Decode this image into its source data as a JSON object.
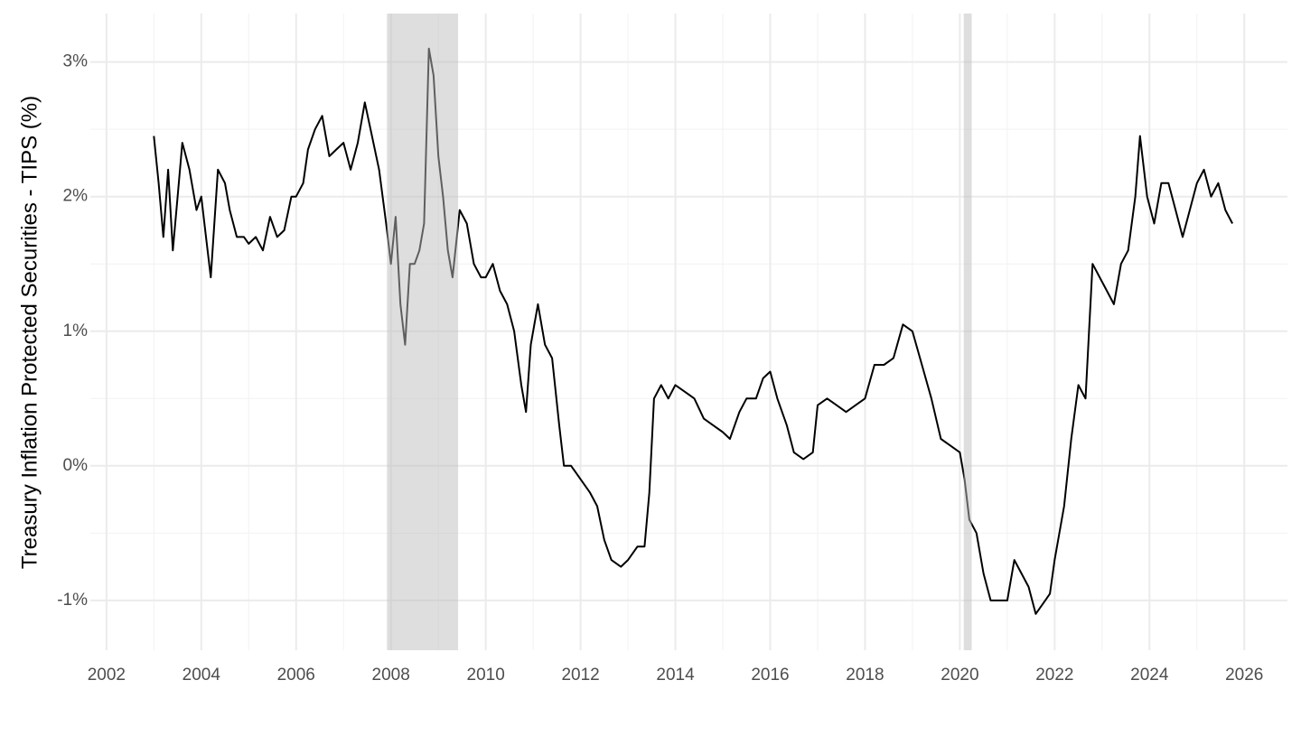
{
  "chart_data": {
    "type": "line",
    "y_label": "Treasury Inflation Protected Securities - TIPS (%)",
    "color": "#000000",
    "shade_color": "#bdbdbd",
    "shaded_ranges": [
      [
        2007.917,
        2009.417
      ],
      [
        2020.083,
        2020.25
      ]
    ],
    "xlim": [
      2001.66,
      2026.91
    ],
    "ylim": [
      -1.37,
      3.36
    ],
    "xticks": [
      2002,
      2004,
      2006,
      2008,
      2010,
      2012,
      2014,
      2016,
      2018,
      2020,
      2022,
      2024,
      2026
    ],
    "yticks": [
      {
        "value": -1,
        "label": "-1%"
      },
      {
        "value": 0,
        "label": "0%"
      },
      {
        "value": 1,
        "label": "1%"
      },
      {
        "value": 2,
        "label": "2%"
      },
      {
        "value": 3,
        "label": "3%"
      }
    ],
    "grid": true,
    "x": [
      2003.0,
      2003.1,
      2003.2,
      2003.3,
      2003.4,
      2003.5,
      2003.6,
      2003.75,
      2003.9,
      2004.0,
      2004.1,
      2004.2,
      2004.35,
      2004.5,
      2004.6,
      2004.75,
      2004.9,
      2005.0,
      2005.15,
      2005.3,
      2005.45,
      2005.6,
      2005.75,
      2005.9,
      2006.0,
      2006.15,
      2006.25,
      2006.4,
      2006.55,
      2006.7,
      2006.85,
      2007.0,
      2007.15,
      2007.3,
      2007.45,
      2007.6,
      2007.75,
      2007.9,
      2008.0,
      2008.1,
      2008.2,
      2008.3,
      2008.4,
      2008.5,
      2008.6,
      2008.7,
      2008.8,
      2008.9,
      2009.0,
      2009.1,
      2009.2,
      2009.3,
      2009.45,
      2009.6,
      2009.75,
      2009.9,
      2010.0,
      2010.15,
      2010.3,
      2010.45,
      2010.6,
      2010.75,
      2010.85,
      2010.95,
      2011.1,
      2011.25,
      2011.4,
      2011.55,
      2011.65,
      2011.8,
      2012.0,
      2012.2,
      2012.35,
      2012.5,
      2012.65,
      2012.85,
      2013.0,
      2013.2,
      2013.35,
      2013.45,
      2013.55,
      2013.7,
      2013.85,
      2014.0,
      2014.2,
      2014.4,
      2014.6,
      2014.8,
      2015.0,
      2015.15,
      2015.35,
      2015.5,
      2015.7,
      2015.85,
      2016.0,
      2016.15,
      2016.35,
      2016.5,
      2016.7,
      2016.9,
      2017.0,
      2017.2,
      2017.4,
      2017.6,
      2017.8,
      2018.0,
      2018.2,
      2018.4,
      2018.6,
      2018.8,
      2019.0,
      2019.2,
      2019.4,
      2019.6,
      2019.8,
      2020.0,
      2020.1,
      2020.2,
      2020.35,
      2020.5,
      2020.65,
      2020.8,
      2021.0,
      2021.15,
      2021.3,
      2021.45,
      2021.6,
      2021.8,
      2021.9,
      2022.0,
      2022.2,
      2022.35,
      2022.5,
      2022.65,
      2022.8,
      2022.95,
      2023.1,
      2023.25,
      2023.4,
      2023.55,
      2023.7,
      2023.8,
      2023.95,
      2024.1,
      2024.25,
      2024.4,
      2024.55,
      2024.7,
      2024.85,
      2025.0,
      2025.15,
      2025.3,
      2025.45,
      2025.6,
      2025.75
    ],
    "values": [
      2.45,
      2.1,
      1.7,
      2.2,
      1.6,
      2.0,
      2.4,
      2.2,
      1.9,
      2.0,
      1.7,
      1.4,
      2.2,
      2.1,
      1.9,
      1.7,
      1.7,
      1.65,
      1.7,
      1.6,
      1.85,
      1.7,
      1.75,
      2.0,
      2.0,
      2.1,
      2.35,
      2.5,
      2.6,
      2.3,
      2.35,
      2.4,
      2.2,
      2.4,
      2.7,
      2.45,
      2.2,
      1.8,
      1.5,
      1.85,
      1.2,
      0.9,
      1.5,
      1.5,
      1.6,
      1.8,
      3.1,
      2.9,
      2.3,
      2.0,
      1.6,
      1.4,
      1.9,
      1.8,
      1.5,
      1.4,
      1.4,
      1.5,
      1.3,
      1.2,
      1.0,
      0.6,
      0.4,
      0.9,
      1.2,
      0.9,
      0.8,
      0.3,
      0.0,
      0.0,
      -0.1,
      -0.2,
      -0.3,
      -0.55,
      -0.7,
      -0.75,
      -0.7,
      -0.6,
      -0.6,
      -0.2,
      0.5,
      0.6,
      0.5,
      0.6,
      0.55,
      0.5,
      0.35,
      0.3,
      0.25,
      0.2,
      0.4,
      0.5,
      0.5,
      0.65,
      0.7,
      0.5,
      0.3,
      0.1,
      0.05,
      0.1,
      0.45,
      0.5,
      0.45,
      0.4,
      0.45,
      0.5,
      0.75,
      0.75,
      0.8,
      1.05,
      1.0,
      0.75,
      0.5,
      0.2,
      0.15,
      0.1,
      -0.1,
      -0.4,
      -0.5,
      -0.8,
      -1.0,
      -1.0,
      -1.0,
      -0.7,
      -0.8,
      -0.9,
      -1.1,
      -1.0,
      -0.95,
      -0.7,
      -0.3,
      0.2,
      0.6,
      0.5,
      1.5,
      1.4,
      1.3,
      1.2,
      1.5,
      1.6,
      2.0,
      2.45,
      2.0,
      1.8,
      2.1,
      2.1,
      1.9,
      1.7,
      1.9,
      2.1,
      2.2,
      2.0,
      2.1,
      1.9,
      1.8
    ]
  }
}
